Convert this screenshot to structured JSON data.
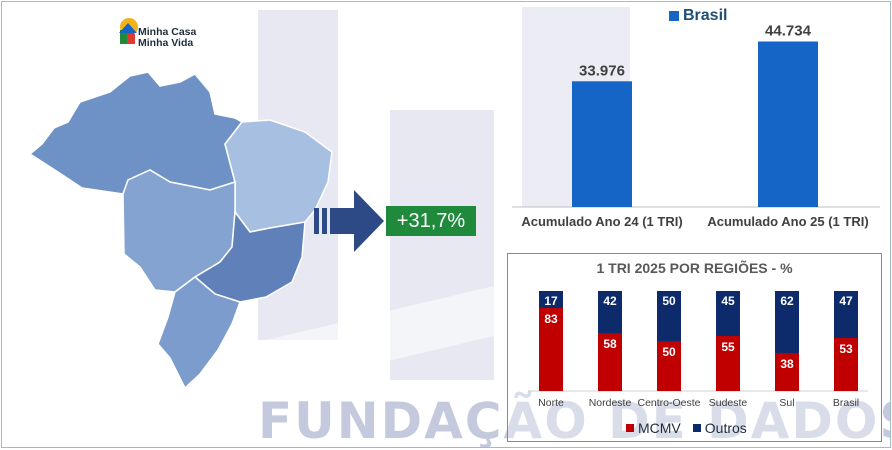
{
  "logo": {
    "line1": "Minha Casa",
    "line2": "Minha Vida"
  },
  "growth_badge": "+31,7%",
  "watermark": "FUNDAÇÃO DE DADOS",
  "colors": {
    "brasil_blue": "#1565c6",
    "mcmv_red": "#c00000",
    "outros_navy": "#0d2b6b",
    "badge_green": "#1f8a3c",
    "map_blue": "#6f92c6"
  },
  "chart_data": [
    {
      "type": "bar",
      "categories": [
        "Acumulado Ano 24 (1 TRI)",
        "Acumulado Ano 25 (1 TRI)"
      ],
      "series": [
        {
          "name": "Brasil",
          "values": [
            33976,
            44734
          ],
          "labels": [
            "33.976",
            "44.734"
          ]
        }
      ],
      "ylim": [
        0,
        50000
      ],
      "legend": "top"
    },
    {
      "type": "bar",
      "stacked": true,
      "title": "1 TRI 2025 POR REGIÕES - %",
      "categories": [
        "Norte",
        "Nordeste",
        "Centro-Oeste",
        "Sudeste",
        "Sul",
        "Brasil"
      ],
      "series": [
        {
          "name": "MCMV",
          "values": [
            83,
            58,
            50,
            55,
            38,
            53
          ]
        },
        {
          "name": "Outros",
          "values": [
            17,
            42,
            50,
            45,
            62,
            47
          ]
        }
      ],
      "ylim": [
        0,
        100
      ],
      "legend": "bottom"
    }
  ]
}
